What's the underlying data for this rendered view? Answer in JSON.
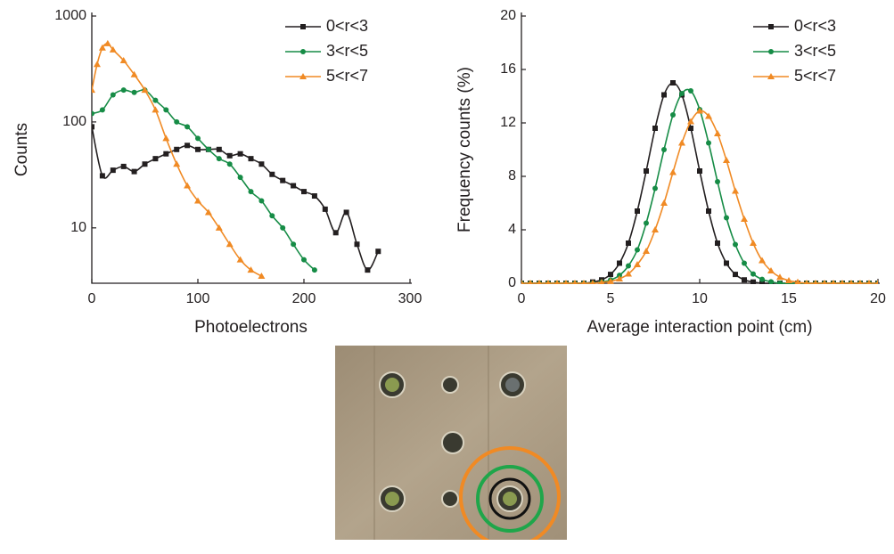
{
  "chart_data": [
    {
      "type": "line",
      "x_label": "Photoelectrons",
      "y_label": "Counts",
      "log_y": true,
      "xlim": [
        0,
        300
      ],
      "xticks": [
        0,
        100,
        200,
        300
      ],
      "ylim": [
        3,
        1000
      ],
      "yticks": [
        10,
        100,
        1000
      ],
      "legend": "upper right",
      "series": [
        {
          "name": "0<r<3",
          "color": "#231f20",
          "marker": "square",
          "x": [
            0,
            10,
            20,
            30,
            40,
            50,
            60,
            70,
            80,
            90,
            100,
            110,
            120,
            130,
            140,
            150,
            160,
            170,
            180,
            190,
            200,
            210,
            220,
            230,
            240,
            250,
            260,
            270
          ],
          "values": [
            90,
            31,
            35,
            38,
            34,
            40,
            45,
            50,
            55,
            60,
            55,
            55,
            55,
            48,
            50,
            45,
            40,
            32,
            28,
            25,
            22,
            20,
            15,
            9,
            14,
            7,
            4,
            6
          ]
        },
        {
          "name": "3<r<5",
          "color": "#168c46",
          "marker": "circle",
          "x": [
            0,
            10,
            20,
            30,
            40,
            50,
            60,
            70,
            80,
            90,
            100,
            110,
            120,
            130,
            140,
            150,
            160,
            170,
            180,
            190,
            200,
            210
          ],
          "values": [
            120,
            130,
            180,
            200,
            190,
            200,
            160,
            130,
            100,
            90,
            70,
            55,
            45,
            40,
            30,
            22,
            18,
            13,
            10,
            7,
            5,
            4
          ]
        },
        {
          "name": "5<r<7",
          "color": "#f08a24",
          "marker": "triangle",
          "x": [
            0,
            5,
            10,
            15,
            20,
            30,
            40,
            50,
            60,
            70,
            80,
            90,
            100,
            110,
            120,
            130,
            140,
            150,
            160
          ],
          "values": [
            200,
            350,
            500,
            550,
            480,
            380,
            280,
            200,
            130,
            70,
            40,
            25,
            18,
            14,
            10,
            7,
            5,
            4,
            3.5
          ]
        }
      ]
    },
    {
      "type": "line",
      "x_label": "Average interaction point (cm)",
      "y_label": "Frequency counts (%)",
      "log_y": false,
      "xlim": [
        0,
        20
      ],
      "xticks": [
        0,
        5,
        10,
        15,
        20
      ],
      "ylim": [
        0,
        20
      ],
      "yticks": [
        0,
        4,
        8,
        12,
        16,
        20
      ],
      "legend": "upper right",
      "x": [
        0,
        0.5,
        1,
        1.5,
        2,
        2.5,
        3,
        3.5,
        4,
        4.5,
        5,
        5.5,
        6,
        6.5,
        7,
        7.5,
        8,
        8.5,
        9,
        9.5,
        10,
        10.5,
        11,
        11.5,
        12,
        12.5,
        13,
        13.5,
        14,
        14.5,
        15,
        15.5,
        16,
        16.5,
        17,
        17.5,
        18,
        18.5,
        19,
        19.5,
        20
      ],
      "series": [
        {
          "name": "0<r<3",
          "color": "#231f20",
          "marker": "square",
          "values": [
            0,
            0,
            0,
            0,
            0,
            0,
            0,
            0,
            0.09,
            0.25,
            0.66,
            1.5,
            3.0,
            5.4,
            8.4,
            11.6,
            14.1,
            15,
            14.1,
            11.6,
            8.4,
            5.4,
            3.0,
            1.5,
            0.66,
            0.25,
            0.09,
            0,
            0,
            0,
            0,
            0,
            0,
            0,
            0,
            0,
            0,
            0,
            0,
            0,
            0
          ]
        },
        {
          "name": "3<r<5",
          "color": "#168c46",
          "marker": "circle",
          "values": [
            0,
            0,
            0,
            0,
            0,
            0,
            0,
            0,
            0,
            0.09,
            0.24,
            0.59,
            1.3,
            2.5,
            4.5,
            7.1,
            10.0,
            12.6,
            14.2,
            14.4,
            13.0,
            10.5,
            7.6,
            4.9,
            2.9,
            1.5,
            0.69,
            0.29,
            0.11,
            0,
            0,
            0,
            0,
            0,
            0,
            0,
            0,
            0,
            0,
            0,
            0
          ]
        },
        {
          "name": "5<r<7",
          "color": "#f08a24",
          "marker": "triangle",
          "values": [
            0,
            0,
            0,
            0,
            0,
            0,
            0,
            0,
            0,
            0.06,
            0.14,
            0.33,
            0.7,
            1.4,
            2.4,
            4.0,
            6.0,
            8.3,
            10.5,
            12.1,
            12.9,
            12.5,
            11.2,
            9.2,
            6.9,
            4.8,
            3.0,
            1.7,
            0.93,
            0.45,
            0.2,
            0.08,
            0,
            0,
            0,
            0,
            0,
            0,
            0,
            0,
            0
          ]
        }
      ]
    }
  ]
}
